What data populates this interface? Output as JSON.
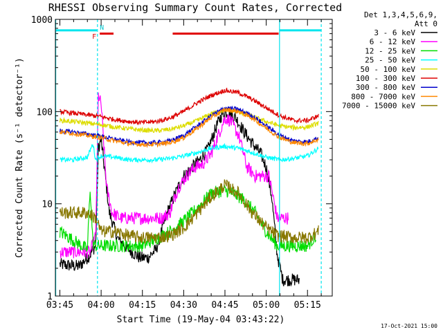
{
  "chart_data": {
    "type": "line",
    "title": "RHESSI Observing Summary Count Rates, Corrected",
    "xlabel": "Start Time (19-May-04 03:43:22)",
    "ylabel": "Corrected Count Rate (s⁻¹ detector⁻¹)",
    "yscale": "log",
    "ylim": [
      1,
      1000
    ],
    "xlim": [
      "03:43:22",
      "05:24:00"
    ],
    "x_ticks": [
      "03:45",
      "04:00",
      "04:15",
      "04:30",
      "04:45",
      "05:00",
      "05:15"
    ],
    "y_ticks": [
      "1",
      "10",
      "100",
      "1000"
    ],
    "legend_header": [
      "Det 1,3,4,5,6,9,",
      "Att 0"
    ],
    "legend_position": "right",
    "flag_labels": [
      "F",
      "N"
    ],
    "timestamp": "17-Oct-2021 15:00",
    "markers": [
      {
        "type": "solid",
        "color": "#00e5ee",
        "time": "03:43:30"
      },
      {
        "type": "dashed",
        "color": "#00e5ee",
        "time": "03:58:40"
      },
      {
        "type": "solid",
        "color": "#00e5ee",
        "time": "05:04:50"
      },
      {
        "type": "dashed",
        "color": "#00e5ee",
        "time": "05:20:00"
      }
    ],
    "bars": [
      {
        "color": "#00e5ee",
        "start": "03:43:30",
        "end": "03:58:30",
        "level": 760
      },
      {
        "color": "#e00000",
        "start": "03:59:30",
        "end": "04:04:30",
        "level": 700
      },
      {
        "color": "#e00000",
        "start": "04:26:00",
        "end": "05:04:30",
        "level": 700
      },
      {
        "color": "#00e5ee",
        "start": "05:04:50",
        "end": "05:20:00",
        "level": 760
      }
    ],
    "series": [
      {
        "name": "3 - 6 keV",
        "color": "#000000",
        "x": [
          "03:45",
          "03:52",
          "03:56",
          "03:57",
          "03:58",
          "03:59",
          "04:00",
          "04:03",
          "04:06",
          "04:10",
          "04:14",
          "04:17",
          "04:20",
          "04:24",
          "04:27",
          "04:30",
          "04:33",
          "04:36",
          "04:39",
          "04:42",
          "04:44",
          "04:46",
          "04:49",
          "04:52",
          "04:55",
          "04:58",
          "05:00",
          "05:02",
          "05:04",
          "05:06",
          "05:08",
          "05:12"
        ],
        "y": [
          2.2,
          2.1,
          2.8,
          3.2,
          3.5,
          40,
          50,
          8,
          4.2,
          3.2,
          2.6,
          2.6,
          3.2,
          8,
          13,
          20,
          25,
          30,
          40,
          70,
          95,
          100,
          85,
          60,
          45,
          35,
          25,
          12,
          2.8,
          1.5,
          1.5,
          1.5
        ]
      },
      {
        "name": "6 - 12 keV",
        "color": "#ff00ff",
        "x": [
          "03:45",
          "03:56",
          "03:58",
          "03:59",
          "04:00",
          "04:02",
          "04:04",
          "04:07",
          "04:10",
          "04:14",
          "04:18",
          "04:22",
          "04:25",
          "04:28",
          "04:31",
          "04:34",
          "04:37",
          "04:40",
          "04:43",
          "04:45",
          "04:47",
          "04:50",
          "04:53",
          "04:56",
          "04:59",
          "05:01",
          "05:03",
          "05:04",
          "05:05",
          "05:08"
        ],
        "y": [
          3.0,
          3.0,
          4.5,
          150,
          120,
          15,
          8,
          7,
          7,
          7,
          7,
          7,
          8,
          15,
          20,
          25,
          27,
          35,
          60,
          85,
          80,
          55,
          25,
          20,
          20,
          20,
          10,
          7,
          7,
          7
        ]
      },
      {
        "name": "12 - 25 keV",
        "color": "#00dd00",
        "x": [
          "03:45",
          "03:50",
          "03:55",
          "03:56",
          "03:57",
          "03:58",
          "04:00",
          "04:05",
          "04:10",
          "04:15",
          "04:20",
          "04:25",
          "04:30",
          "04:35",
          "04:40",
          "04:45",
          "04:48",
          "04:52",
          "04:56",
          "05:00",
          "05:04",
          "05:05",
          "05:10",
          "05:15",
          "05:18"
        ],
        "y": [
          5,
          4,
          3.2,
          15,
          3.8,
          3.5,
          3.5,
          3.5,
          3.5,
          3.5,
          4.2,
          5,
          6.5,
          9,
          13,
          14,
          13,
          11,
          8,
          5,
          3.5,
          3.5,
          3.5,
          3.5,
          4.5
        ]
      },
      {
        "name": "25 - 50 keV",
        "color": "#00ffff",
        "x": [
          "03:45",
          "03:50",
          "03:55",
          "03:57",
          "03:58",
          "04:00",
          "04:05",
          "04:10",
          "04:15",
          "04:20",
          "04:25",
          "04:30",
          "04:35",
          "04:40",
          "04:45",
          "04:50",
          "04:55",
          "05:00",
          "05:05",
          "05:10",
          "05:15",
          "05:19"
        ],
        "y": [
          30,
          30,
          32,
          45,
          30,
          33,
          32,
          30,
          30,
          30,
          31,
          33,
          36,
          40,
          42,
          40,
          36,
          32,
          30,
          31,
          33,
          40
        ]
      },
      {
        "name": "50 - 100 keV",
        "color": "#dddd00",
        "x": [
          "03:45",
          "03:50",
          "03:55",
          "04:00",
          "04:05",
          "04:10",
          "04:15",
          "04:20",
          "04:25",
          "04:30",
          "04:35",
          "04:40",
          "04:45",
          "04:50",
          "04:55",
          "05:00",
          "05:05",
          "05:10",
          "05:15",
          "05:19"
        ],
        "y": [
          80,
          78,
          75,
          72,
          68,
          65,
          63,
          62,
          64,
          70,
          80,
          95,
          105,
          100,
          88,
          78,
          70,
          67,
          68,
          75
        ]
      },
      {
        "name": "100 - 300 keV",
        "color": "#dd0000",
        "x": [
          "03:45",
          "03:50",
          "03:55",
          "04:00",
          "04:05",
          "04:10",
          "04:15",
          "04:20",
          "04:25",
          "04:30",
          "04:35",
          "04:40",
          "04:45",
          "04:50",
          "04:55",
          "05:00",
          "05:05",
          "05:10",
          "05:15",
          "05:19"
        ],
        "y": [
          100,
          96,
          92,
          88,
          82,
          78,
          76,
          78,
          85,
          100,
          125,
          150,
          170,
          160,
          135,
          110,
          90,
          80,
          80,
          90
        ]
      },
      {
        "name": "300 - 800 keV",
        "color": "#0000cc",
        "x": [
          "03:45",
          "03:50",
          "03:55",
          "04:00",
          "04:05",
          "04:10",
          "04:15",
          "04:20",
          "04:25",
          "04:30",
          "04:35",
          "04:40",
          "04:45",
          "04:50",
          "04:55",
          "05:00",
          "05:05",
          "05:10",
          "05:15",
          "05:19"
        ],
        "y": [
          62,
          60,
          57,
          54,
          50,
          47,
          46,
          46,
          48,
          55,
          70,
          90,
          110,
          105,
          90,
          70,
          55,
          48,
          47,
          52
        ]
      },
      {
        "name": "800 - 7000 keV",
        "color": "#ff8800",
        "x": [
          "03:45",
          "03:50",
          "03:55",
          "04:00",
          "04:05",
          "04:10",
          "04:15",
          "04:20",
          "04:25",
          "04:30",
          "04:35",
          "04:40",
          "04:45",
          "04:50",
          "04:55",
          "05:00",
          "05:05",
          "05:10",
          "05:15",
          "05:19"
        ],
        "y": [
          60,
          58,
          55,
          52,
          48,
          45,
          44,
          44,
          46,
          52,
          66,
          86,
          105,
          100,
          85,
          66,
          52,
          46,
          45,
          50
        ]
      },
      {
        "name": "7000 - 15000 keV",
        "color": "#887700",
        "x": [
          "03:45",
          "03:50",
          "03:55",
          "03:58",
          "04:00",
          "04:05",
          "04:10",
          "04:15",
          "04:20",
          "04:25",
          "04:30",
          "04:35",
          "04:40",
          "04:45",
          "04:50",
          "04:55",
          "05:00",
          "05:04",
          "05:05",
          "05:10",
          "05:15",
          "05:19"
        ],
        "y": [
          8,
          8,
          8,
          7,
          5,
          5,
          4.5,
          4.3,
          4.3,
          4.5,
          5.5,
          8,
          12,
          16,
          13,
          8,
          5.5,
          4.5,
          4.5,
          4.3,
          4.3,
          5
        ]
      }
    ]
  }
}
